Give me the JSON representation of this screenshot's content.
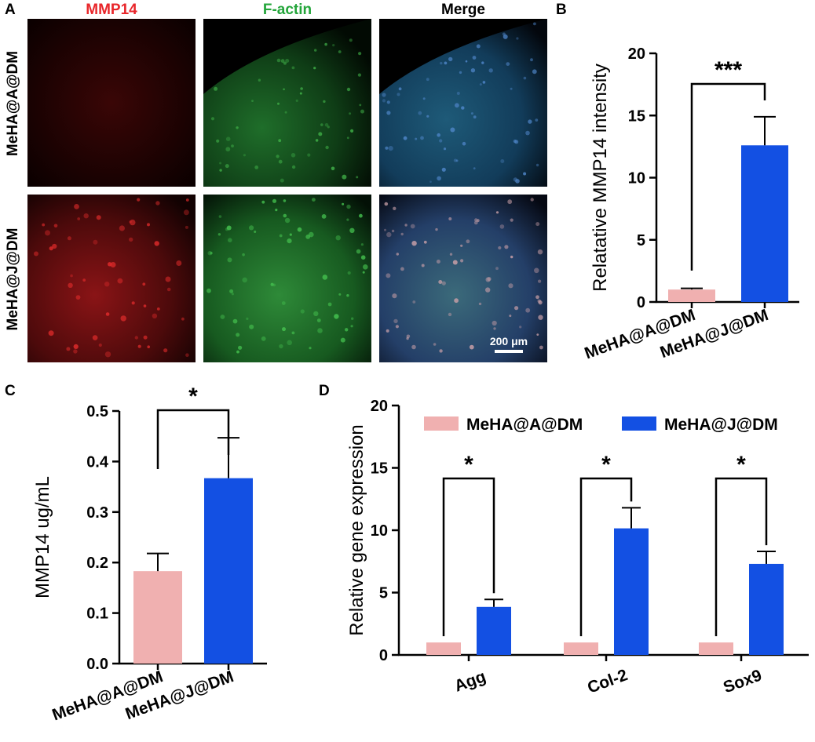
{
  "panel_a": {
    "letter": "A",
    "column_headers": [
      {
        "text": "MMP14",
        "color": "#e8262a"
      },
      {
        "text": "F-actin",
        "color": "#23a53a"
      },
      {
        "text": "Merge",
        "color": "#000000"
      }
    ],
    "row_labels": [
      "MeHA@A@DM",
      "MeHA@J@DM"
    ],
    "scale_bar": "200 μm"
  },
  "colors": {
    "pink": "#f0b0b0",
    "blue": "#1350e3"
  },
  "chart_data": [
    {
      "panel": "B",
      "type": "bar",
      "categories": [
        "MeHA@A@DM",
        "MeHA@J@DM"
      ],
      "values": [
        1.0,
        12.6
      ],
      "errors": [
        0.1,
        2.3
      ],
      "ylabel": "Relatative MMP14 intensity",
      "ylim": [
        0,
        20
      ],
      "yticks": [
        "0",
        "5",
        "10",
        "15",
        "20"
      ],
      "significance": "***"
    },
    {
      "panel": "C",
      "type": "bar",
      "categories": [
        "MeHA@A@DM",
        "MeHA@J@DM"
      ],
      "values": [
        0.183,
        0.367
      ],
      "errors": [
        0.035,
        0.08
      ],
      "ylabel": "MMP14 ug/mL",
      "ylim": [
        0,
        0.5
      ],
      "yticks": [
        "0.0",
        "0.1",
        "0.2",
        "0.3",
        "0.4",
        "0.5"
      ],
      "significance": "*"
    },
    {
      "panel": "D",
      "type": "bar",
      "categories": [
        "Agg",
        "Col-2",
        "Sox9"
      ],
      "series": [
        {
          "name": "MeHA@A@DM",
          "values": [
            1.0,
            1.0,
            1.0
          ],
          "errors": [
            0,
            0,
            0
          ]
        },
        {
          "name": "MeHA@J@DM",
          "values": [
            3.85,
            10.15,
            7.3
          ],
          "errors": [
            0.6,
            1.65,
            1.0
          ]
        }
      ],
      "ylabel": "Relative gene expression",
      "ylim": [
        0,
        20
      ],
      "yticks": [
        "0",
        "5",
        "10",
        "15",
        "20"
      ],
      "legend": "top",
      "significance": [
        "*",
        "*",
        "*"
      ]
    }
  ]
}
